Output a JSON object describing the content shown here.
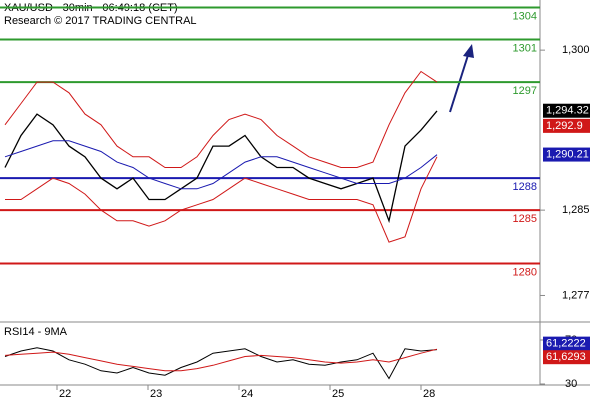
{
  "chart_data": {
    "type": "line",
    "title": "XAU/USD - 30min - 06:49:18 (CET)",
    "subtitle": "Research © 2017 TRADING CENTRAL",
    "ylim": [
      1274.7,
      1304.7
    ],
    "yticks": [
      {
        "value": 1300,
        "label": "1,300"
      },
      {
        "value": 1285,
        "label": "1,285"
      },
      {
        "value": 1277,
        "label": "1,277"
      }
    ],
    "xlabels": [
      "22",
      "23",
      "24",
      "25",
      "28"
    ],
    "levels": [
      {
        "value": 1304,
        "color": "#2e9a2e"
      },
      {
        "value": 1301,
        "color": "#2e9a2e"
      },
      {
        "value": 1297,
        "color": "#2e9a2e"
      },
      {
        "value": 1288,
        "color": "#1a1ab0"
      },
      {
        "value": 1285,
        "color": "#d01818"
      },
      {
        "value": 1280,
        "color": "#d01818"
      }
    ],
    "price_labels": [
      {
        "value": 1294.32,
        "label": "1,294.32",
        "color": "#000000"
      },
      {
        "value": 1292.9,
        "label": "1,292.9",
        "color": "#d01818"
      },
      {
        "value": 1290.21,
        "label": "1,290.21",
        "color": "#1a1ab0"
      }
    ],
    "series": [
      {
        "name": "price",
        "color": "#000000",
        "values": [
          1289,
          1292,
          1294,
          1293,
          1291,
          1290,
          1288,
          1287,
          1288,
          1286,
          1286,
          1287,
          1288,
          1291,
          1291,
          1292,
          1290,
          1289,
          1289,
          1288,
          1287.5,
          1287,
          1287.5,
          1288,
          1284,
          1291,
          1292.5,
          1294.3
        ]
      },
      {
        "name": "ma",
        "color": "#1a1ab0",
        "values": [
          1290,
          1290.5,
          1291,
          1291.5,
          1291.5,
          1291,
          1290.5,
          1289.5,
          1289,
          1288,
          1287.5,
          1287,
          1287,
          1287.5,
          1288.5,
          1289.5,
          1290,
          1290,
          1289.5,
          1289,
          1288.5,
          1288,
          1287.5,
          1287.5,
          1287.5,
          1288,
          1289,
          1290.2
        ]
      },
      {
        "name": "upper",
        "color": "#d01818",
        "values": [
          1293,
          1295,
          1297,
          1297,
          1296,
          1294,
          1293,
          1291,
          1290,
          1290,
          1289,
          1289,
          1290,
          1292,
          1293.5,
          1294,
          1293.5,
          1292,
          1291,
          1290,
          1289.5,
          1289,
          1289,
          1289.5,
          1293,
          1296,
          1298,
          1297
        ]
      },
      {
        "name": "lower",
        "color": "#d01818",
        "values": [
          1286,
          1286,
          1287,
          1288,
          1287.5,
          1286.5,
          1285,
          1284,
          1284,
          1283.5,
          1284,
          1285,
          1285.5,
          1286,
          1287,
          1288,
          1287.5,
          1287,
          1286.5,
          1286,
          1286,
          1286,
          1286,
          1285.5,
          1282,
          1282.5,
          1287,
          1290
        ]
      }
    ],
    "rsi": {
      "title": "RSI14 - 9MA",
      "ylim": [
        20,
        83.6
      ],
      "yticks": [
        70,
        30
      ],
      "values": [
        55,
        60,
        63,
        60,
        52,
        48,
        42,
        40,
        45,
        40,
        38,
        45,
        50,
        58,
        60,
        62,
        55,
        50,
        52,
        48,
        47,
        50,
        52,
        58,
        35,
        62,
        60,
        61.2222
      ],
      "ma": [
        56,
        57,
        58,
        59,
        57,
        54,
        51,
        48,
        46,
        44,
        42,
        42,
        44,
        47,
        51,
        55,
        56,
        55,
        54,
        52,
        50,
        49,
        50,
        52,
        50,
        54,
        58,
        61.6293
      ],
      "color": "#000000",
      "ma_color": "#d01818",
      "labels": [
        {
          "value": 61.2222,
          "label": "61,2222",
          "color": "#1a1ab0"
        },
        {
          "value": 61.6293,
          "label": "61,6293",
          "color": "#d01818"
        }
      ]
    }
  }
}
